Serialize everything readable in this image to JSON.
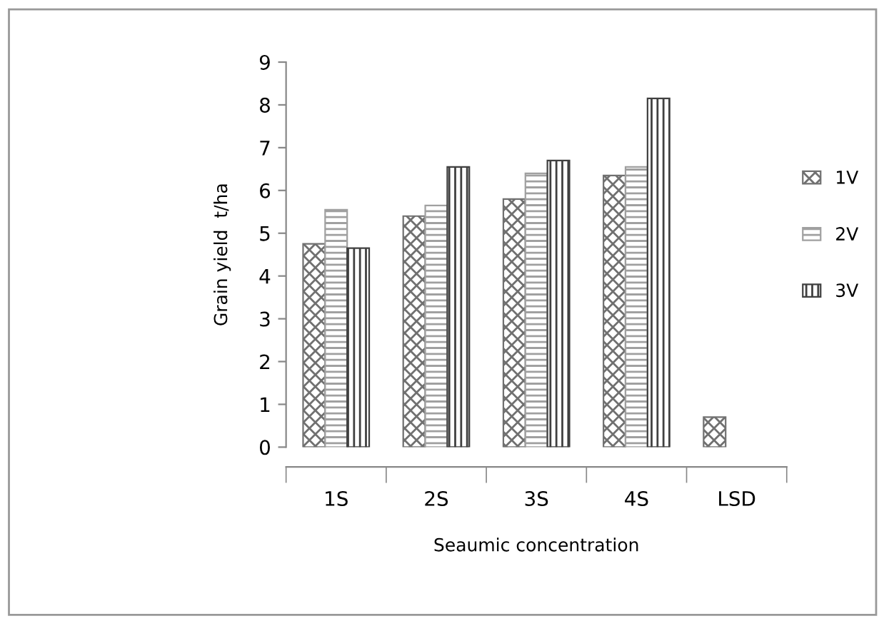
{
  "chart_data": {
    "type": "bar",
    "xlabel": "Seaumic concentration",
    "ylabel": "Grain yield  t/ha",
    "categories": [
      "1S",
      "2S",
      "3S",
      "4S",
      "LSD"
    ],
    "series": [
      {
        "name": "1V",
        "color": "#707070",
        "values": [
          4.75,
          5.4,
          5.8,
          6.35,
          0.7
        ]
      },
      {
        "name": "2V",
        "color": "#a0a0a0",
        "values": [
          5.55,
          5.65,
          6.4,
          6.55,
          null
        ]
      },
      {
        "name": "3V",
        "color": "#404040",
        "values": [
          4.65,
          6.55,
          6.7,
          8.15,
          null
        ]
      }
    ],
    "ylim": [
      0,
      9
    ],
    "yticks": [
      0,
      1,
      2,
      3,
      4,
      5,
      6,
      7,
      8,
      9
    ],
    "grid": false,
    "legend": "right"
  }
}
